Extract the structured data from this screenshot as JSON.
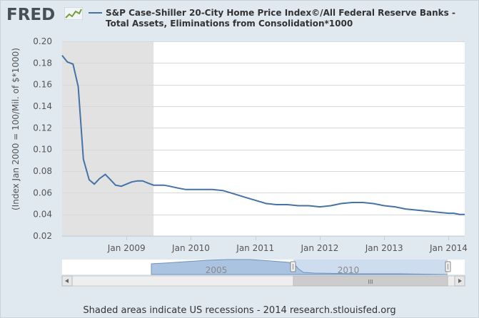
{
  "header": {
    "logo_text": "FRED",
    "logo_icon": "trend-chart-icon",
    "title_line1": "S&P Case-Shiller 20-City Home Price Index©/All Federal Reserve Banks -",
    "title_line2": "Total Assets, Eliminations from Consolidation*1000"
  },
  "colors": {
    "series": "#4572a7",
    "recession": "#e2e2e2",
    "plot_bg": "#ffffff",
    "frame_bg": "#e1e9f0",
    "navigator_fill": "#a9c3e0",
    "navigator_selected": "#cddcef"
  },
  "chart_data": {
    "type": "line",
    "title": "S&P Case-Shiller 20-City Home Price Index©/All Federal Reserve Banks - Total Assets, Eliminations from Consolidation*1000",
    "ylabel": "(Index Jan 2000 = 100/Mil. of $*1000)",
    "xlabel": "",
    "ylim": [
      0.02,
      0.2
    ],
    "yticks": [
      0.2,
      0.18,
      0.16,
      0.14,
      0.12,
      0.1,
      0.08,
      0.06,
      0.04,
      0.02
    ],
    "ytick_labels": [
      "0.20",
      "0.18",
      "0.16",
      "0.14",
      "0.12",
      "0.10",
      "0.08",
      "0.06",
      "0.04",
      "0.02"
    ],
    "xlim": [
      2008.0,
      2014.25
    ],
    "xticks": [
      2009.0,
      2010.0,
      2011.0,
      2012.0,
      2013.0,
      2014.0
    ],
    "xtick_labels": [
      "Jan 2009",
      "Jan 2010",
      "Jan 2011",
      "Jan 2012",
      "Jan 2013",
      "Jan 2014"
    ],
    "recessions": [
      [
        2008.0,
        2009.42
      ]
    ],
    "series": [
      {
        "name": "S&P Case-Shiller 20-City Home Price Index©/All Federal Reserve Banks - Total Assets",
        "x": [
          2008.0,
          2008.08,
          2008.17,
          2008.25,
          2008.33,
          2008.42,
          2008.5,
          2008.58,
          2008.67,
          2008.75,
          2008.83,
          2008.92,
          2009.0,
          2009.08,
          2009.17,
          2009.25,
          2009.33,
          2009.42,
          2009.5,
          2009.58,
          2009.67,
          2009.75,
          2009.83,
          2009.92,
          2010.0,
          2010.17,
          2010.33,
          2010.5,
          2010.67,
          2010.83,
          2011.0,
          2011.17,
          2011.33,
          2011.5,
          2011.67,
          2011.83,
          2012.0,
          2012.17,
          2012.33,
          2012.5,
          2012.67,
          2012.83,
          2013.0,
          2013.17,
          2013.33,
          2013.5,
          2013.67,
          2013.83,
          2014.0,
          2014.08,
          2014.17,
          2014.25
        ],
        "y": [
          0.187,
          0.181,
          0.179,
          0.158,
          0.091,
          0.072,
          0.068,
          0.073,
          0.077,
          0.072,
          0.067,
          0.066,
          0.068,
          0.07,
          0.071,
          0.071,
          0.069,
          0.067,
          0.067,
          0.067,
          0.066,
          0.065,
          0.064,
          0.063,
          0.063,
          0.063,
          0.063,
          0.062,
          0.059,
          0.056,
          0.053,
          0.05,
          0.049,
          0.049,
          0.048,
          0.048,
          0.047,
          0.048,
          0.05,
          0.051,
          0.051,
          0.05,
          0.048,
          0.047,
          0.045,
          0.044,
          0.043,
          0.042,
          0.041,
          0.041,
          0.04,
          0.04
        ]
      }
    ],
    "navigator": {
      "labels": [
        "2005",
        "2010"
      ],
      "scroll_grip": "III"
    }
  },
  "footer": {
    "text": "Shaded areas indicate US recessions - 2014 research.stlouisfed.org"
  }
}
